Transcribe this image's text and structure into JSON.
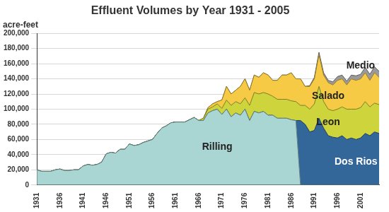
{
  "chart_data": {
    "type": "area",
    "title": "Effluent Volumes by Year 1931 - 2005",
    "ylabel": "acre-feet",
    "stacked": true,
    "grid": true,
    "x": [
      1931,
      1932,
      1933,
      1934,
      1935,
      1936,
      1937,
      1938,
      1939,
      1940,
      1941,
      1942,
      1943,
      1944,
      1945,
      1946,
      1947,
      1948,
      1949,
      1950,
      1951,
      1952,
      1953,
      1954,
      1955,
      1956,
      1957,
      1958,
      1959,
      1960,
      1961,
      1962,
      1963,
      1964,
      1965,
      1966,
      1967,
      1968,
      1969,
      1970,
      1971,
      1972,
      1973,
      1974,
      1975,
      1976,
      1977,
      1978,
      1979,
      1980,
      1981,
      1982,
      1983,
      1984,
      1985,
      1986,
      1987,
      1988,
      1989,
      1990,
      1991,
      1992,
      1993,
      1994,
      1995,
      1996,
      1997,
      1998,
      1999,
      2000,
      2001,
      2002,
      2003,
      2004,
      2005
    ],
    "xlim": [
      1931,
      2005
    ],
    "xticks": [
      1931,
      1936,
      1941,
      1946,
      1951,
      1956,
      1961,
      1966,
      1971,
      1976,
      1981,
      1986,
      1991,
      1996,
      2001
    ],
    "ylim": [
      0,
      200000
    ],
    "yticks": [
      0,
      {
        "value": 20000,
        "label": "20,000"
      },
      {
        "value": 40000,
        "label": "40,000"
      },
      {
        "value": 60000,
        "label": "60,000"
      },
      {
        "value": 80000,
        "label": "80,000"
      },
      {
        "value": 100000,
        "label": "100,000"
      },
      {
        "value": 120000,
        "label": "120,000"
      },
      {
        "value": 140000,
        "label": "140,000"
      },
      {
        "value": 160000,
        "label": "160,000"
      },
      {
        "value": 180000,
        "label": "180,000"
      },
      {
        "value": 200000,
        "label": "200,000"
      }
    ],
    "series": [
      {
        "name": "Rilling",
        "color": "#a9d6d2",
        "values": [
          20000,
          18000,
          18000,
          18000,
          20000,
          21000,
          19000,
          19000,
          20000,
          20000,
          25000,
          27000,
          26000,
          27000,
          30000,
          41000,
          43000,
          42000,
          47000,
          47000,
          54000,
          52000,
          53000,
          56000,
          58000,
          60000,
          68000,
          75000,
          78000,
          82000,
          83000,
          83000,
          83000,
          86000,
          89000,
          85000,
          85000,
          95000,
          98000,
          100000,
          93000,
          100000,
          90000,
          95000,
          92000,
          100000,
          85000,
          97000,
          95000,
          97000,
          92000,
          92000,
          88000,
          88000,
          88000,
          86000,
          85000,
          0,
          0,
          0,
          0,
          0,
          0,
          0,
          0,
          0,
          0,
          0,
          0,
          0,
          0,
          0,
          0,
          0,
          0
        ]
      },
      {
        "name": "Dos Rios",
        "color": "#336699",
        "values": [
          0,
          0,
          0,
          0,
          0,
          0,
          0,
          0,
          0,
          0,
          0,
          0,
          0,
          0,
          0,
          0,
          0,
          0,
          0,
          0,
          0,
          0,
          0,
          0,
          0,
          0,
          0,
          0,
          0,
          0,
          0,
          0,
          0,
          0,
          0,
          0,
          0,
          0,
          0,
          0,
          0,
          0,
          0,
          0,
          0,
          0,
          0,
          0,
          0,
          0,
          0,
          0,
          0,
          0,
          0,
          0,
          0,
          85000,
          80000,
          70000,
          72000,
          88000,
          75000,
          65000,
          63000,
          62000,
          65000,
          60000,
          62000,
          60000,
          62000,
          68000,
          65000,
          70000,
          68000
        ]
      },
      {
        "name": "Leon",
        "color": "#cdd43c",
        "values": [
          0,
          0,
          0,
          0,
          0,
          0,
          0,
          0,
          0,
          0,
          0,
          0,
          0,
          0,
          0,
          0,
          0,
          0,
          0,
          0,
          0,
          0,
          0,
          0,
          0,
          0,
          0,
          0,
          0,
          0,
          0,
          0,
          0,
          0,
          0,
          0,
          3000,
          5000,
          5000,
          7000,
          8000,
          12000,
          15000,
          15000,
          15000,
          15000,
          20000,
          25000,
          25000,
          25000,
          28000,
          25000,
          25000,
          25000,
          25000,
          25000,
          25000,
          20000,
          25000,
          30000,
          35000,
          42000,
          35000,
          35000,
          35000,
          38000,
          38000,
          40000,
          38000,
          40000,
          40000,
          42000,
          38000,
          38000,
          38000
        ]
      },
      {
        "name": "Salado",
        "color": "#f7ca45",
        "values": [
          0,
          0,
          0,
          0,
          0,
          0,
          0,
          0,
          0,
          0,
          0,
          0,
          0,
          0,
          0,
          0,
          0,
          0,
          0,
          0,
          0,
          0,
          0,
          0,
          0,
          0,
          0,
          0,
          0,
          0,
          0,
          0,
          0,
          0,
          0,
          0,
          0,
          2000,
          4000,
          3000,
          11000,
          18000,
          15000,
          15000,
          23000,
          25000,
          20000,
          23000,
          22000,
          26000,
          25000,
          21000,
          25000,
          32000,
          32000,
          37000,
          30000,
          35000,
          25000,
          30000,
          33000,
          42000,
          35000,
          35000,
          34000,
          38000,
          37000,
          32000,
          40000,
          38000,
          38000,
          38000,
          35000,
          40000,
          36000
        ]
      },
      {
        "name": "Medio",
        "color": "#9a9a9a",
        "values": [
          0,
          0,
          0,
          0,
          0,
          0,
          0,
          0,
          0,
          0,
          0,
          0,
          0,
          0,
          0,
          0,
          0,
          0,
          0,
          0,
          0,
          0,
          0,
          0,
          0,
          0,
          0,
          0,
          0,
          0,
          0,
          0,
          0,
          0,
          0,
          0,
          0,
          0,
          0,
          0,
          0,
          0,
          0,
          0,
          0,
          0,
          0,
          0,
          0,
          0,
          0,
          0,
          0,
          0,
          0,
          0,
          0,
          0,
          0,
          1000,
          2000,
          3000,
          3000,
          3000,
          4000,
          5000,
          5000,
          5000,
          5000,
          6000,
          6000,
          7000,
          8000,
          8000,
          8000
        ]
      }
    ]
  }
}
